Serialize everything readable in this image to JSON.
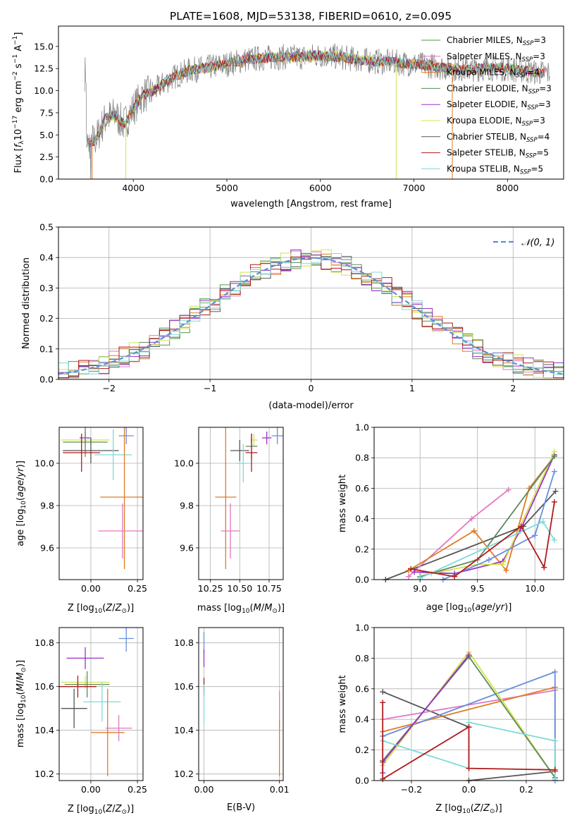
{
  "figure": {
    "title": "PLATE=1608, MJD=53138, FIBERID=0610, z=0.095"
  },
  "chart_data": [
    {
      "id": "spectrum",
      "type": "line",
      "xlabel": "wavelength [Angstrom, rest frame]",
      "ylabel": "Flux [f_λ 10^-17 erg cm^-2 s^-1 A^-1]",
      "xlim": [
        3200,
        8600
      ],
      "ylim": [
        0,
        17.3
      ],
      "x_ticks": [
        4000,
        5000,
        6000,
        7000,
        8000
      ],
      "y_ticks": [
        0.0,
        2.5,
        5.0,
        7.5,
        10.0,
        12.5,
        15.0
      ],
      "legend_position": "right",
      "data_series_note": "observed spectrum (gray) overlaid with nine best-fit SSP models",
      "continuum_anchor_points": [
        [
          3500,
          4.0
        ],
        [
          3600,
          4.5
        ],
        [
          3700,
          6.8
        ],
        [
          3800,
          7.3
        ],
        [
          3900,
          6.2
        ],
        [
          4000,
          8.0
        ],
        [
          4100,
          9.5
        ],
        [
          4200,
          9.8
        ],
        [
          4400,
          11.4
        ],
        [
          4600,
          12.3
        ],
        [
          4800,
          12.6
        ],
        [
          5000,
          13.0
        ],
        [
          5200,
          13.5
        ],
        [
          5400,
          13.7
        ],
        [
          5600,
          13.8
        ],
        [
          5800,
          13.8
        ],
        [
          6000,
          14.0
        ],
        [
          6200,
          13.8
        ],
        [
          6400,
          13.5
        ],
        [
          6600,
          13.3
        ],
        [
          6800,
          13.2
        ],
        [
          7000,
          13.0
        ],
        [
          7200,
          12.8
        ],
        [
          7400,
          12.5
        ],
        [
          7600,
          12.4
        ],
        [
          7800,
          12.6
        ],
        [
          8000,
          12.5
        ],
        [
          8200,
          12.2
        ],
        [
          8400,
          12.0
        ]
      ],
      "series": [
        {
          "legend": "Chabrier MILES, N",
          "sub": "SSP",
          "tail": "=3",
          "color": "#4d9a4d"
        },
        {
          "legend": "Salpeter MILES, N",
          "sub": "SSP",
          "tail": "=3",
          "color": "#e377c2"
        },
        {
          "legend": "Kroupa MILES, N",
          "sub": "SSP",
          "tail": "=4",
          "color": "#e07b26"
        },
        {
          "legend": "Chabrier ELODIE, N",
          "sub": "SSP",
          "tail": "=3",
          "color": "#5c8a5c"
        },
        {
          "legend": "Salpeter ELODIE, N",
          "sub": "SSP",
          "tail": "=3",
          "color": "#9b30c8"
        },
        {
          "legend": "Kroupa ELODIE, N",
          "sub": "SSP",
          "tail": "=3",
          "color": "#d4e34a"
        },
        {
          "legend": "Chabrier STELIB, N",
          "sub": "SSP",
          "tail": "=4",
          "color": "#555555"
        },
        {
          "legend": "Salpeter STELIB, N",
          "sub": "SSP",
          "tail": "=5",
          "color": "#b01a1a"
        },
        {
          "legend": "Kroupa STELIB, N",
          "sub": "SSP",
          "tail": "=5",
          "color": "#7fdada"
        }
      ]
    },
    {
      "id": "residuals",
      "type": "bar",
      "xlabel": "(data-model)/error",
      "ylabel": "Normed distribution",
      "xlim": [
        -2.5,
        2.5
      ],
      "ylim": [
        0,
        0.5
      ],
      "x_ticks": [
        -2,
        -1,
        0,
        1,
        2
      ],
      "y_ticks": [
        0.0,
        0.1,
        0.2,
        0.3,
        0.4,
        0.5
      ],
      "grid": true,
      "legend_position": "top-right",
      "gaussian_legend": "𝒩(0, 1)",
      "gaussian_color": "#5b8fd9",
      "bin_width": 0.1
    },
    {
      "id": "age-vs-Z",
      "type": "scatter",
      "xlabel": "Z [log10(Z/Z⊙)]",
      "ylabel": "age [log10(age/yr)]",
      "xlim": [
        -0.17,
        0.28
      ],
      "ylim": [
        9.45,
        10.17
      ],
      "x_ticks": [
        0.0,
        0.25
      ],
      "y_ticks": [
        9.6,
        9.8,
        10.0
      ],
      "grid": true,
      "points": [
        {
          "color": "#6a8fdc",
          "x": 0.19,
          "y": 10.13,
          "xerr": 0.04,
          "yerr": 0.04
        },
        {
          "color": "#9b30c8",
          "x": -0.03,
          "y": 10.12,
          "xerr": 0.03,
          "yerr": 0.03
        },
        {
          "color": "#d4e34a",
          "x": -0.03,
          "y": 10.11,
          "xerr": 0.13,
          "yerr": 0.03
        },
        {
          "color": "#5c8a5c",
          "x": -0.03,
          "y": 10.1,
          "xerr": 0.12,
          "yerr": 0.07
        },
        {
          "color": "#555555",
          "x": 0.0,
          "y": 10.06,
          "xerr": 0.15,
          "yerr": 0.06
        },
        {
          "color": "#b01a1a",
          "x": -0.05,
          "y": 10.05,
          "xerr": 0.1,
          "yerr": 0.09
        },
        {
          "color": "#7fdada",
          "x": 0.12,
          "y": 10.04,
          "xerr": 0.1,
          "yerr": 0.12
        },
        {
          "color": "#e07b26",
          "x": 0.18,
          "y": 9.84,
          "xerr": 0.13,
          "yerr": 0.34
        },
        {
          "color": "#e377c2",
          "x": 0.17,
          "y": 9.68,
          "xerr": 0.13,
          "yerr": 0.13
        }
      ]
    },
    {
      "id": "age-vs-mass",
      "type": "scatter",
      "xlabel": "mass [log10(M/M⊙)]",
      "ylabel": "",
      "xlim": [
        10.15,
        10.87
      ],
      "ylim": [
        9.45,
        10.17
      ],
      "x_ticks": [
        10.25,
        10.5,
        10.75
      ],
      "x_tick_labels": [
        "10.25",
        "10.50",
        "10.75"
      ],
      "y_ticks": [
        9.6,
        9.8,
        10.0
      ],
      "grid": true,
      "points": [
        {
          "color": "#6a8fdc",
          "x": 10.82,
          "y": 10.13,
          "xerr": 0.05,
          "yerr": 0.04
        },
        {
          "color": "#9b30c8",
          "x": 10.73,
          "y": 10.12,
          "xerr": 0.04,
          "yerr": 0.03
        },
        {
          "color": "#d4e34a",
          "x": 10.62,
          "y": 10.11,
          "xerr": 0.03,
          "yerr": 0.03
        },
        {
          "color": "#5c8a5c",
          "x": 10.6,
          "y": 10.08,
          "xerr": 0.05,
          "yerr": 0.06
        },
        {
          "color": "#555555",
          "x": 10.5,
          "y": 10.06,
          "xerr": 0.08,
          "yerr": 0.05
        },
        {
          "color": "#b01a1a",
          "x": 10.6,
          "y": 10.05,
          "xerr": 0.05,
          "yerr": 0.09
        },
        {
          "color": "#7fdada",
          "x": 10.53,
          "y": 10.0,
          "xerr": 0.06,
          "yerr": 0.09
        },
        {
          "color": "#e07b26",
          "x": 10.38,
          "y": 9.84,
          "xerr": 0.09,
          "yerr": 0.34
        },
        {
          "color": "#e377c2",
          "x": 10.42,
          "y": 9.68,
          "xerr": 0.08,
          "yerr": 0.13
        }
      ]
    },
    {
      "id": "weight-vs-age",
      "type": "line",
      "xlabel": "age [log10(age/yr)]",
      "ylabel": "mass weight",
      "xlim": [
        8.6,
        10.25
      ],
      "ylim": [
        0,
        1.0
      ],
      "x_ticks": [
        9.0,
        9.5,
        10.0
      ],
      "y_ticks": [
        0.0,
        0.2,
        0.4,
        0.6,
        0.8,
        1.0
      ],
      "grid": true,
      "series": [
        {
          "color": "#555555",
          "points": [
            [
              8.7,
              0.0
            ],
            [
              9.9,
              0.35
            ],
            [
              10.18,
              0.58
            ]
          ]
        },
        {
          "color": "#e377c2",
          "points": [
            [
              8.9,
              0.02
            ],
            [
              9.45,
              0.4
            ],
            [
              9.77,
              0.59
            ]
          ]
        },
        {
          "color": "#e07b26",
          "points": [
            [
              8.9,
              0.06
            ],
            [
              9.47,
              0.32
            ],
            [
              9.75,
              0.06
            ],
            [
              9.95,
              0.6
            ],
            [
              10.17,
              0.81
            ]
          ]
        },
        {
          "color": "#9b30c8",
          "points": [
            [
              8.95,
              0.05
            ],
            [
              9.3,
              0.04
            ],
            [
              9.72,
              0.12
            ],
            [
              9.87,
              0.32
            ],
            [
              10.17,
              0.82
            ]
          ]
        },
        {
          "color": "#d4e34a",
          "points": [
            [
              9.1,
              0.04
            ],
            [
              9.5,
              0.1
            ],
            [
              9.72,
              0.1
            ],
            [
              10.17,
              0.84
            ]
          ]
        },
        {
          "color": "#5c8a5c",
          "points": [
            [
              9.0,
              0.02
            ],
            [
              9.5,
              0.13
            ],
            [
              10.17,
              0.81
            ]
          ]
        },
        {
          "color": "#6a8fdc",
          "points": [
            [
              9.2,
              0.0
            ],
            [
              9.6,
              0.13
            ],
            [
              10.0,
              0.29
            ],
            [
              10.17,
              0.71
            ]
          ]
        },
        {
          "color": "#7fdada",
          "points": [
            [
              9.0,
              0.01
            ],
            [
              10.07,
              0.38
            ],
            [
              10.17,
              0.26
            ]
          ]
        },
        {
          "color": "#b01a1a",
          "points": [
            [
              8.92,
              0.07
            ],
            [
              9.3,
              0.02
            ],
            [
              9.88,
              0.35
            ],
            [
              10.08,
              0.08
            ],
            [
              10.17,
              0.51
            ]
          ]
        }
      ]
    },
    {
      "id": "mass-vs-Z",
      "type": "scatter",
      "xlabel": "Z [log10(Z/Z⊙)]",
      "ylabel": "mass [log10(M/M⊙)]",
      "xlim": [
        -0.17,
        0.28
      ],
      "ylim": [
        10.17,
        10.87
      ],
      "x_ticks": [
        0.0,
        0.25
      ],
      "y_ticks": [
        10.2,
        10.4,
        10.6,
        10.8
      ],
      "grid": true,
      "points": [
        {
          "color": "#6a8fdc",
          "x": 0.19,
          "y": 10.82,
          "xerr": 0.04,
          "yerr": 0.06
        },
        {
          "color": "#9b30c8",
          "x": -0.03,
          "y": 10.73,
          "xerr": 0.1,
          "yerr": 0.05
        },
        {
          "color": "#d4e34a",
          "x": -0.03,
          "y": 10.62,
          "xerr": 0.13,
          "yerr": 0.03
        },
        {
          "color": "#5c8a5c",
          "x": -0.02,
          "y": 10.61,
          "xerr": 0.12,
          "yerr": 0.06
        },
        {
          "color": "#555555",
          "x": -0.09,
          "y": 10.5,
          "xerr": 0.07,
          "yerr": 0.09
        },
        {
          "color": "#b01a1a",
          "x": -0.07,
          "y": 10.6,
          "xerr": 0.1,
          "yerr": 0.05
        },
        {
          "color": "#7fdada",
          "x": 0.06,
          "y": 10.53,
          "xerr": 0.1,
          "yerr": 0.09
        },
        {
          "color": "#e07b26",
          "x": 0.09,
          "y": 10.39,
          "xerr": 0.09,
          "yerr": 0.2
        },
        {
          "color": "#e377c2",
          "x": 0.15,
          "y": 10.41,
          "xerr": 0.07,
          "yerr": 0.06
        }
      ]
    },
    {
      "id": "mass-vs-EBV",
      "type": "scatter",
      "xlabel": "E(B-V)",
      "ylabel": "",
      "xlim": [
        -0.0007,
        0.0105
      ],
      "ylim": [
        10.17,
        10.87
      ],
      "x_ticks": [
        0.0,
        0.01
      ],
      "x_tick_labels": [
        "0.00",
        "0.01"
      ],
      "y_ticks": [
        10.2,
        10.4,
        10.6,
        10.8
      ],
      "grid": true,
      "points": [
        {
          "color": "#6a8fdc",
          "x": 0.0,
          "y": 10.8,
          "xerr": 0,
          "yerr": 0.05
        },
        {
          "color": "#9b30c8",
          "x": 0.0,
          "y": 10.73,
          "xerr": 0,
          "yerr": 0.04
        },
        {
          "color": "#b01a1a",
          "x": 0.0,
          "y": 10.6,
          "xerr": 0,
          "yerr": 0.04
        },
        {
          "color": "#7fdada",
          "x": 0.0,
          "y": 10.52,
          "xerr": 0,
          "yerr": 0.09
        },
        {
          "color": "#e377c2",
          "x": 0.01,
          "y": 10.5,
          "xerr": 0,
          "yerr": 0.08
        },
        {
          "color": "#e07b26",
          "x": 0.01,
          "y": 10.32,
          "xerr": 0,
          "yerr": 0.13
        }
      ]
    },
    {
      "id": "weight-vs-Z",
      "type": "line",
      "xlabel": "Z [log10(Z/Z⊙)]",
      "ylabel": "mass weight",
      "xlim": [
        -0.33,
        0.33
      ],
      "ylim": [
        0,
        1.0
      ],
      "x_ticks": [
        -0.2,
        0.0,
        0.2
      ],
      "y_ticks": [
        0.0,
        0.2,
        0.4,
        0.6,
        0.8,
        1.0
      ],
      "grid": true,
      "series": [
        {
          "color": "#555555",
          "points": [
            [
              -0.3,
              0.58
            ],
            [
              0.0,
              0.35
            ]
          ]
        },
        {
          "color": "#555555",
          "points": [
            [
              0.0,
              0.0
            ],
            [
              0.3,
              0.06
            ]
          ]
        },
        {
          "color": "#e377c2",
          "points": [
            [
              -0.3,
              0.4
            ],
            [
              0.3,
              0.59
            ]
          ]
        },
        {
          "color": "#e07b26",
          "points": [
            [
              -0.3,
              0.32
            ],
            [
              0.3,
              0.61
            ],
            [
              0.3,
              0.06
            ]
          ]
        },
        {
          "color": "#6a8fdc",
          "points": [
            [
              -0.3,
              0.29
            ],
            [
              0.3,
              0.71
            ],
            [
              0.3,
              0.0
            ]
          ]
        },
        {
          "color": "#d4e34a",
          "points": [
            [
              -0.3,
              0.1
            ],
            [
              0.0,
              0.84
            ],
            [
              0.3,
              0.02
            ]
          ]
        },
        {
          "color": "#5c8a5c",
          "points": [
            [
              -0.3,
              0.13
            ],
            [
              0.0,
              0.81
            ],
            [
              0.3,
              0.02
            ]
          ]
        },
        {
          "color": "#9b30c8",
          "points": [
            [
              -0.3,
              0.05
            ],
            [
              -0.3,
              0.12
            ],
            [
              0.0,
              0.82
            ]
          ]
        },
        {
          "color": "#7fdada",
          "points": [
            [
              -0.3,
              0.26
            ],
            [
              0.0,
              0.08
            ],
            [
              0.0,
              0.38
            ],
            [
              0.3,
              0.26
            ],
            [
              0.3,
              0.01
            ]
          ]
        },
        {
          "color": "#b01a1a",
          "points": [
            [
              -0.3,
              0.51
            ],
            [
              -0.3,
              0.01
            ],
            [
              0.0,
              0.35
            ],
            [
              0.0,
              0.08
            ],
            [
              0.3,
              0.07
            ]
          ]
        }
      ]
    }
  ]
}
